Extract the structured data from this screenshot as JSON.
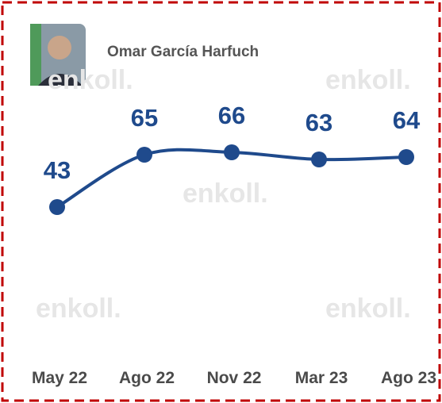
{
  "chart_data": {
    "type": "line",
    "title": "Omar García Harfuch",
    "watermark": "enkoll.",
    "categories": [
      "May 22",
      "Ago 22",
      "Nov 22",
      "Mar 23",
      "Ago 23"
    ],
    "values": [
      43,
      65,
      66,
      63,
      64
    ],
    "color": "#1f4a8c"
  }
}
